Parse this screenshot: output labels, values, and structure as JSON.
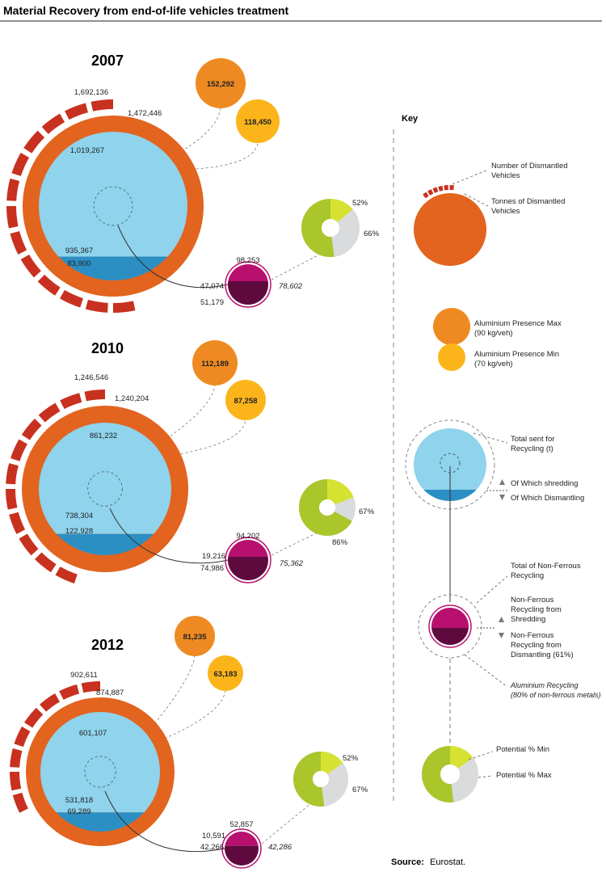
{
  "title": "Material Recovery from end-of-life vehicles treatment",
  "source_bold": "Source:",
  "source_text": "Eurostat.",
  "colors": {
    "dismantled_vehicles_segment": "#c8311f",
    "tonnes_ring": "#e2641f",
    "aluminium_max": "#ef8a22",
    "aluminium_min": "#fbb51a",
    "recycling_fill": "#8fd3ec",
    "shredding_fill": "#2b8fc3",
    "nonferrous_shredding": "#b8106e",
    "nonferrous_dismantling": "#5e0a3f",
    "potential_min": "#aac62b",
    "potential_max": "#d6e232",
    "potential_rest": "#d9dbdd"
  },
  "chart_data": [
    {
      "type": "diagram",
      "year": "2007",
      "number_dismantled_vehicles": "1,692,136",
      "tonnes_dismantled_vehicles": "1,472,446",
      "aluminium_presence_max": "152,292",
      "aluminium_presence_min": "118,450",
      "total_sent_for_recycling": "1,019,267",
      "of_which_shredding": "935,367",
      "of_which_dismantling": "83,900",
      "total_nonferrous_recycling": "98,253",
      "nonferrous_from_shredding": "47,074",
      "nonferrous_from_dismantling": "51,179",
      "aluminium_recycling": "78,602",
      "potential_min_pct": "52%",
      "potential_max_pct": "66%",
      "potential_min_value": 52,
      "potential_max_value": 66,
      "dismantled_segments": 13
    },
    {
      "type": "diagram",
      "year": "2010",
      "number_dismantled_vehicles": "1,246,546",
      "tonnes_dismantled_vehicles": "1,240,204",
      "aluminium_presence_max": "112,189",
      "aluminium_presence_min": "87,258",
      "total_sent_for_recycling": "861,232",
      "of_which_shredding": "738,304",
      "of_which_dismantling": "122,928",
      "total_nonferrous_recycling": "94,202",
      "nonferrous_from_shredding": "19,216",
      "nonferrous_from_dismantling": "74,986",
      "aluminium_recycling": "75,362",
      "potential_min_pct": "67%",
      "potential_max_pct": "86%",
      "potential_min_value": 67,
      "potential_max_value": 86,
      "dismantled_segments": 11
    },
    {
      "type": "diagram",
      "year": "2012",
      "number_dismantled_vehicles": "902,611",
      "tonnes_dismantled_vehicles": "874,887",
      "aluminium_presence_max": "81,235",
      "aluminium_presence_min": "63,183",
      "total_sent_for_recycling": "601,107",
      "of_which_shredding": "531,818",
      "of_which_dismantling": "69,289",
      "total_nonferrous_recycling": "52,857",
      "nonferrous_from_shredding": "10,591",
      "nonferrous_from_dismantling": "42,266",
      "aluminium_recycling": "42,286",
      "potential_min_pct": "52%",
      "potential_max_pct": "67%",
      "potential_min_value": 52,
      "potential_max_value": 67,
      "dismantled_segments": 8
    }
  ],
  "key": {
    "title": "Key",
    "number_dismantled": [
      "Number of Dismantled",
      "Vehicles"
    ],
    "tonnes_dismantled": [
      "Tonnes of Dismantled",
      "Vehicles"
    ],
    "al_max": [
      "Aluminium Presence Max",
      "(90 kg/veh)"
    ],
    "al_min": [
      "Aluminium Presence Min",
      "(70 kg/veh)"
    ],
    "total_sent": [
      "Total sent for",
      "Recycling (t)"
    ],
    "of_which_shredding": "Of Which shredding",
    "of_which_dismantling": "Of Which Dismantling",
    "total_nonferrous": [
      "Total of Non-Ferrous",
      "Recycling"
    ],
    "nf_shredding": [
      "Non-Ferrous",
      "Recycling from",
      "Shredding"
    ],
    "nf_dismantling": [
      "Non-Ferrous",
      "Recycling from",
      "Dismantling (61%)"
    ],
    "al_recycling": [
      "Aluminium Recycling",
      "(80% of non-ferrous metals)"
    ],
    "potential_min": "Potential % Min",
    "potential_max": "Potential % Max"
  }
}
